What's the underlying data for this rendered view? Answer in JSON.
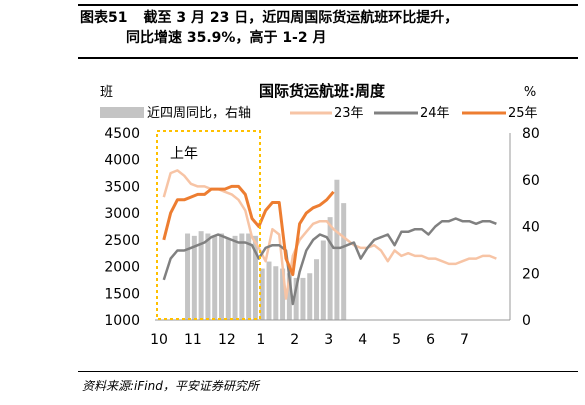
{
  "figure": {
    "label": "图表51",
    "caption_line1": "截至 3 月 23 日，近四周国际货运航班环比提升，",
    "caption_line2": "同比增速 35.9%，高于 1-2 月",
    "source": "资料来源:iFind，平安证券研究所"
  },
  "chart_data": {
    "type": "line+bar",
    "title": "国际货运航班:周度",
    "left_axis_unit": "班",
    "right_axis_unit": "%",
    "annotation": "上年",
    "x_ticks": [
      "10",
      "11",
      "12",
      "1",
      "2",
      "3",
      "4",
      "5",
      "6",
      "7"
    ],
    "yleft": {
      "min": 1000,
      "max": 4500,
      "ticks": [
        1000,
        1500,
        2000,
        2500,
        3000,
        3500,
        4000,
        4500
      ]
    },
    "yright": {
      "min": 0,
      "max": 80,
      "ticks": [
        0,
        20,
        40,
        60,
        80
      ]
    },
    "legend_position": "top",
    "colors": {
      "bar": "#c4c4c4",
      "s23": "#f7c4a5",
      "s24": "#808080",
      "s25": "#ed7d31",
      "box": "#ffc000"
    },
    "bars": {
      "name": "近四周同比，右轴",
      "axis": "right",
      "x": [
        10.9,
        11.1,
        11.3,
        11.5,
        11.7,
        11.9,
        12.1,
        12.3,
        12.5,
        12.7,
        12.9,
        13.1,
        13.3,
        13.5,
        13.7,
        13.9,
        14.1,
        14.3,
        14.5,
        14.7,
        14.9,
        15.1,
        15.3,
        15.5
      ],
      "values": [
        37,
        36,
        38,
        37,
        36,
        37,
        35,
        36,
        37,
        37,
        36,
        22,
        25,
        23,
        22,
        20,
        18,
        18,
        20,
        26,
        34,
        44,
        60,
        50
      ]
    },
    "lines": [
      {
        "name": "23年",
        "x": [
          10.2,
          10.4,
          10.6,
          10.8,
          11.0,
          11.2,
          11.4,
          11.6,
          11.8,
          12.0,
          12.2,
          12.4,
          12.6,
          12.8,
          13.0,
          13.2,
          13.4,
          13.6,
          13.8,
          14.0,
          14.2,
          14.4,
          14.6,
          14.8,
          15.0,
          15.2,
          15.4,
          15.6,
          15.8,
          16.0,
          16.2,
          16.4,
          16.6,
          16.8,
          17.0,
          17.2,
          17.4,
          17.6,
          17.8,
          18.0,
          18.2,
          18.4,
          18.6,
          18.8,
          19.0,
          19.2,
          19.4,
          19.6,
          19.8,
          20.0
        ],
        "values": [
          3300,
          3750,
          3800,
          3700,
          3550,
          3500,
          3500,
          3450,
          3450,
          3400,
          3350,
          3250,
          3050,
          2550,
          2350,
          2100,
          2700,
          2600,
          1400,
          2200,
          2500,
          2650,
          2800,
          2850,
          2850,
          2700,
          2600,
          2500,
          2400,
          2350,
          2350,
          2400,
          2300,
          2100,
          2300,
          2200,
          2250,
          2200,
          2200,
          2150,
          2150,
          2100,
          2050,
          2050,
          2100,
          2150,
          2150,
          2200,
          2200,
          2150
        ]
      },
      {
        "name": "24年",
        "x": [
          10.2,
          10.4,
          10.6,
          10.8,
          11.0,
          11.2,
          11.4,
          11.6,
          11.8,
          12.0,
          12.2,
          12.4,
          12.6,
          12.8,
          13.0,
          13.2,
          13.4,
          13.6,
          13.8,
          14.0,
          14.2,
          14.4,
          14.6,
          14.8,
          15.0,
          15.2,
          15.4,
          15.6,
          15.8,
          16.0,
          16.2,
          16.4,
          16.6,
          16.8,
          17.0,
          17.2,
          17.4,
          17.6,
          17.8,
          18.0,
          18.2,
          18.4,
          18.6,
          18.8,
          19.0,
          19.2,
          19.4,
          19.6,
          19.8,
          20.0
        ],
        "values": [
          1750,
          2150,
          2300,
          2300,
          2350,
          2400,
          2450,
          2550,
          2600,
          2550,
          2500,
          2450,
          2450,
          2400,
          2150,
          2350,
          2400,
          2400,
          2300,
          1300,
          1900,
          2300,
          2500,
          2600,
          2550,
          2350,
          2350,
          2400,
          2450,
          2150,
          2350,
          2500,
          2550,
          2600,
          2400,
          2650,
          2650,
          2700,
          2700,
          2600,
          2750,
          2850,
          2850,
          2900,
          2850,
          2850,
          2800,
          2850,
          2850,
          2800
        ]
      },
      {
        "name": "25年",
        "x": [
          10.2,
          10.4,
          10.6,
          10.8,
          11.0,
          11.2,
          11.4,
          11.6,
          11.8,
          12.0,
          12.2,
          12.4,
          12.6,
          12.8,
          13.0,
          13.2,
          13.4,
          13.6,
          13.8,
          14.0,
          14.2,
          14.4,
          14.6,
          14.8,
          15.0,
          15.2
        ],
        "values": [
          2500,
          3000,
          3250,
          3250,
          3300,
          3350,
          3350,
          3450,
          3450,
          3450,
          3500,
          3500,
          3350,
          2900,
          2750,
          3050,
          3200,
          3200,
          2150,
          1850,
          2800,
          3000,
          3100,
          3150,
          3250,
          3400
        ]
      }
    ]
  }
}
